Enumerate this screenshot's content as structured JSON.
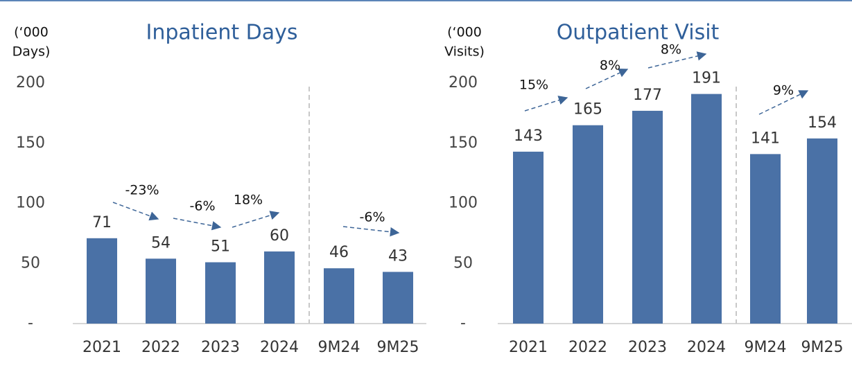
{
  "chart_data": [
    {
      "type": "bar",
      "title": "Inpatient Days",
      "y_label": [
        "(‘000",
        "Days)"
      ],
      "categories": [
        "2021",
        "2022",
        "2023",
        "2024",
        "9M24",
        "9M25"
      ],
      "values": [
        71,
        54,
        51,
        60,
        46,
        43
      ],
      "color": "#4a71a6",
      "ylim": [
        0,
        200
      ],
      "yticks": [
        {
          "value": 0,
          "label": "-"
        },
        50,
        100,
        150,
        200
      ],
      "annotations": [
        "-23%",
        "-6%",
        "18%",
        "-6%"
      ]
    },
    {
      "type": "bar",
      "title": "Outpatient Visit",
      "y_label": [
        "(‘000",
        "Visits)"
      ],
      "categories": [
        "2021",
        "2022",
        "2023",
        "2024",
        "9M24",
        "9M25"
      ],
      "values": [
        143,
        165,
        177,
        191,
        141,
        154
      ],
      "color": "#4a71a6",
      "ylim": [
        0,
        200
      ],
      "yticks": [
        {
          "value": 0,
          "label": "-"
        },
        50,
        100,
        150,
        200
      ],
      "annotations": [
        "15%",
        "8%",
        "8%",
        "9%"
      ]
    }
  ]
}
